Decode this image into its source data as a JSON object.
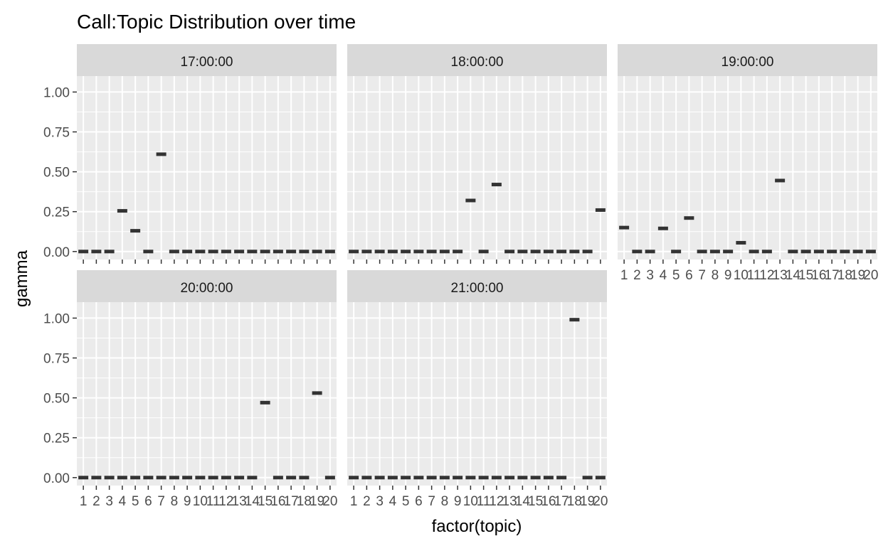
{
  "chart_data": {
    "type": "boxplot-facets",
    "title": "Call:Topic Distribution over time",
    "xlabel": "factor(topic)",
    "ylabel": "gamma",
    "ylim": [
      -0.05,
      1.1
    ],
    "y_ticks": [
      "0.00",
      "0.25",
      "0.50",
      "0.75",
      "1.00"
    ],
    "y_tick_values": [
      0,
      0.25,
      0.5,
      0.75,
      1.0
    ],
    "categories": [
      "1",
      "2",
      "3",
      "4",
      "5",
      "6",
      "7",
      "8",
      "9",
      "10",
      "11",
      "12",
      "13",
      "14",
      "15",
      "16",
      "17",
      "18",
      "19",
      "20"
    ],
    "grid": true,
    "facets": [
      {
        "label": "17:00:00",
        "values": [
          0.0,
          0.0,
          0.0,
          0.255,
          0.13,
          0.0,
          0.61,
          0.0,
          0.0,
          0.0,
          0.0,
          0.0,
          0.0,
          0.0,
          0.0,
          0.0,
          0.0,
          0.0,
          0.0,
          0.0
        ]
      },
      {
        "label": "18:00:00",
        "values": [
          0.0,
          0.0,
          0.0,
          0.0,
          0.0,
          0.0,
          0.0,
          0.0,
          0.0,
          0.32,
          0.0,
          0.42,
          0.0,
          0.0,
          0.0,
          0.0,
          0.0,
          0.0,
          0.0,
          0.26
        ]
      },
      {
        "label": "19:00:00",
        "values": [
          0.15,
          0.0,
          0.0,
          0.145,
          0.0,
          0.21,
          0.0,
          0.0,
          0.0,
          0.055,
          0.0,
          0.0,
          0.445,
          0.0,
          0.0,
          0.0,
          0.0,
          0.0,
          0.0,
          0.0
        ]
      },
      {
        "label": "20:00:00",
        "values": [
          0.0,
          0.0,
          0.0,
          0.0,
          0.0,
          0.0,
          0.0,
          0.0,
          0.0,
          0.0,
          0.0,
          0.0,
          0.0,
          0.0,
          0.47,
          0.0,
          0.0,
          0.0,
          0.53,
          0.0
        ]
      },
      {
        "label": "21:00:00",
        "values": [
          0.0,
          0.0,
          0.0,
          0.0,
          0.0,
          0.0,
          0.0,
          0.0,
          0.0,
          0.0,
          0.0,
          0.0,
          0.0,
          0.0,
          0.0,
          0.0,
          0.0,
          0.99,
          0.0,
          0.0
        ]
      }
    ],
    "colors": {
      "panel_bg": "#ebebeb",
      "strip_bg": "#d9d9d9",
      "grid": "#ffffff",
      "mark": "#333333",
      "text": "#4d4d4d",
      "title": "#000000"
    }
  }
}
